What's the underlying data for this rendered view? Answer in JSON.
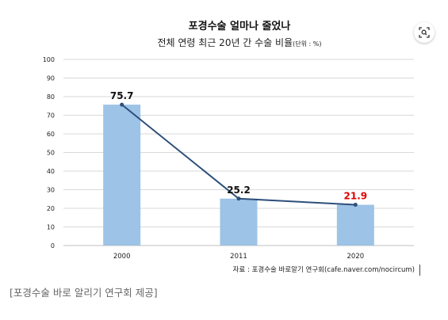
{
  "chart_data": {
    "type": "bar",
    "title": "포경수술 얼마나 줄었나",
    "subtitle": "전체 연령 최근 20년 간 수술 비율",
    "unit": "(단위 : %)",
    "categories": [
      "2000",
      "2011",
      "2020"
    ],
    "values": [
      75.7,
      25.2,
      21.9
    ],
    "value_labels": [
      "75.7",
      "25.2",
      "21.9"
    ],
    "overlay_line": true,
    "ylim": [
      0,
      100
    ],
    "yticks": [
      "0",
      "10",
      "20",
      "30",
      "40",
      "50",
      "60",
      "70",
      "80",
      "90",
      "100"
    ],
    "grid": true,
    "source": "자료 : 포경수술 바로알기 연구회(cafe.naver.com/nocircum)",
    "colors": {
      "bar": "#9dc3e6",
      "line": "#2e4f7a",
      "grid": "#d9d9d9",
      "label_default": "#111111",
      "label_highlight": "#e00000"
    },
    "highlight_index": 2
  },
  "caption": "[포경수술 바로 알리기 연구회 제공]",
  "lens_icon": "lens-search-icon"
}
